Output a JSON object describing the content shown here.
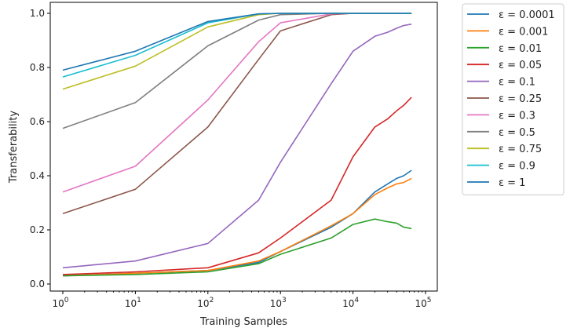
{
  "chart_data": {
    "type": "line",
    "title": "",
    "xlabel": "Training Samples",
    "ylabel": "Transferability",
    "xscale": "log",
    "xlim": [
      1,
      100000
    ],
    "ylim": [
      0,
      1
    ],
    "x_tick_values": [
      1,
      10,
      100,
      1000,
      10000,
      100000
    ],
    "x_tick_labels": [
      {
        "base": "10",
        "exp": "0"
      },
      {
        "base": "10",
        "exp": "1"
      },
      {
        "base": "10",
        "exp": "2"
      },
      {
        "base": "10",
        "exp": "3"
      },
      {
        "base": "10",
        "exp": "4"
      },
      {
        "base": "10",
        "exp": "5"
      }
    ],
    "y_ticks": [
      0.0,
      0.2,
      0.4,
      0.6,
      0.8,
      1.0
    ],
    "y_tick_labels": [
      "0.0",
      "0.2",
      "0.4",
      "0.6",
      "0.8",
      "1.0"
    ],
    "grid": false,
    "legend_position": "outside-right-top",
    "series": [
      {
        "name": "ε = 0.0001",
        "color": "#1f77b4",
        "x": [
          1,
          10,
          100,
          500,
          1000,
          5000,
          10000,
          20000,
          30000,
          40000,
          50000,
          64000
        ],
        "y": [
          0.03,
          0.04,
          0.05,
          0.08,
          0.12,
          0.21,
          0.26,
          0.34,
          0.37,
          0.39,
          0.4,
          0.42
        ]
      },
      {
        "name": "ε = 0.001",
        "color": "#ff7f0e",
        "x": [
          1,
          10,
          100,
          500,
          1000,
          5000,
          10000,
          20000,
          30000,
          40000,
          50000,
          64000
        ],
        "y": [
          0.03,
          0.04,
          0.05,
          0.085,
          0.12,
          0.215,
          0.26,
          0.33,
          0.355,
          0.37,
          0.375,
          0.39
        ]
      },
      {
        "name": "ε = 0.01",
        "color": "#2ca02c",
        "x": [
          1,
          10,
          100,
          500,
          1000,
          5000,
          10000,
          20000,
          30000,
          40000,
          50000,
          64000
        ],
        "y": [
          0.03,
          0.035,
          0.045,
          0.075,
          0.11,
          0.17,
          0.22,
          0.24,
          0.23,
          0.225,
          0.21,
          0.205
        ]
      },
      {
        "name": "ε = 0.05",
        "color": "#d62728",
        "x": [
          1,
          10,
          100,
          500,
          1000,
          5000,
          10000,
          20000,
          30000,
          40000,
          50000,
          64000
        ],
        "y": [
          0.035,
          0.045,
          0.06,
          0.115,
          0.17,
          0.31,
          0.47,
          0.58,
          0.61,
          0.64,
          0.66,
          0.69
        ]
      },
      {
        "name": "ε = 0.1",
        "color": "#9467bd",
        "x": [
          1,
          10,
          100,
          500,
          1000,
          5000,
          10000,
          20000,
          30000,
          40000,
          50000,
          64000
        ],
        "y": [
          0.06,
          0.085,
          0.15,
          0.31,
          0.45,
          0.74,
          0.86,
          0.915,
          0.93,
          0.945,
          0.955,
          0.96
        ]
      },
      {
        "name": "ε = 0.25",
        "color": "#8c564b",
        "x": [
          1,
          10,
          100,
          500,
          1000,
          5000,
          10000,
          64000
        ],
        "y": [
          0.26,
          0.35,
          0.58,
          0.83,
          0.935,
          0.995,
          1.0,
          1.0
        ]
      },
      {
        "name": "ε = 0.3",
        "color": "#e377c2",
        "x": [
          1,
          10,
          100,
          500,
          1000,
          5000,
          10000,
          64000
        ],
        "y": [
          0.34,
          0.435,
          0.68,
          0.895,
          0.965,
          0.998,
          1.0,
          1.0
        ]
      },
      {
        "name": "ε = 0.5",
        "color": "#7f7f7f",
        "x": [
          1,
          10,
          100,
          500,
          1000,
          5000,
          10000,
          64000
        ],
        "y": [
          0.575,
          0.67,
          0.88,
          0.975,
          0.995,
          1.0,
          1.0,
          1.0
        ]
      },
      {
        "name": "ε = 0.75",
        "color": "#bcbd22",
        "x": [
          1,
          10,
          100,
          500,
          1000,
          5000,
          10000,
          64000
        ],
        "y": [
          0.72,
          0.805,
          0.95,
          0.995,
          1.0,
          1.0,
          1.0,
          1.0
        ]
      },
      {
        "name": "ε = 0.9",
        "color": "#17becf",
        "x": [
          1,
          10,
          100,
          500,
          1000,
          5000,
          10000,
          64000
        ],
        "y": [
          0.765,
          0.845,
          0.965,
          0.998,
          1.0,
          1.0,
          1.0,
          1.0
        ]
      },
      {
        "name": "ε = 1",
        "color": "#1f77b4",
        "x": [
          1,
          10,
          100,
          500,
          1000,
          5000,
          10000,
          64000
        ],
        "y": [
          0.79,
          0.86,
          0.97,
          0.998,
          1.0,
          1.0,
          1.0,
          1.0
        ]
      }
    ]
  }
}
